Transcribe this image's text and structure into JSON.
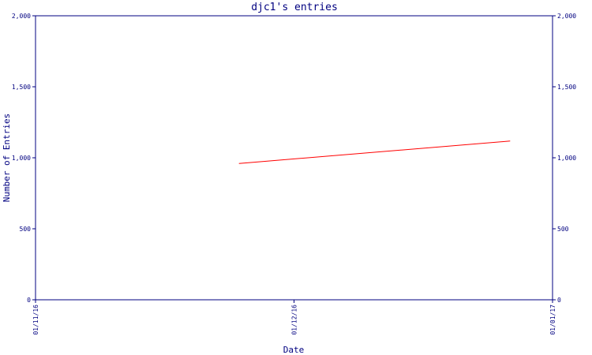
{
  "chart_data": {
    "type": "line",
    "title": "djc1's entries",
    "xlabel": "Date",
    "ylabel": "Number of Entries",
    "x_ticks": [
      "01/11/16",
      "01/12/16",
      "01/01/17"
    ],
    "y_ticks": [
      0,
      500,
      1000,
      1500,
      2000
    ],
    "y_tick_labels": [
      "0",
      "500",
      "1,000",
      "1,500",
      "2,000"
    ],
    "xlim": [
      "2016-11-01",
      "2017-01-01"
    ],
    "ylim": [
      0,
      2000
    ],
    "y_axis_both_sides": true,
    "grid": false,
    "series": [
      {
        "color": "#ff0000",
        "points": [
          {
            "x": "2016-11-25",
            "y": 960
          },
          {
            "x": "2016-12-27",
            "y": 1118
          }
        ]
      }
    ]
  }
}
